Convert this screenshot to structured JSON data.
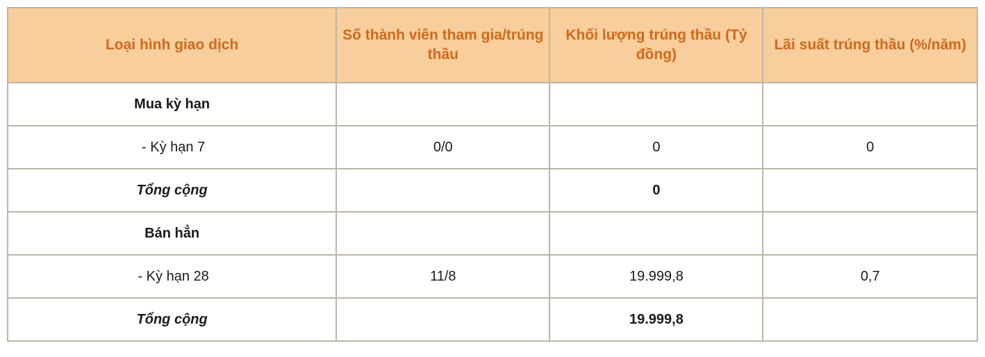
{
  "table": {
    "colors": {
      "header_bg": "#f7ce9c",
      "header_fg": "#d1691a",
      "border": "#bdb4a8",
      "text": "#1a1a1a",
      "bg": "#ffffff"
    },
    "column_widths_pct": [
      33.9,
      22.0,
      22.0,
      22.1
    ],
    "columns": [
      "Loại hình giao dịch",
      "Số thành viên tham gia/trúng thầu",
      "Khối lượng trúng thầu (Tỷ đồng)",
      "Lãi suất trúng thầu (%/năm)"
    ],
    "rows": [
      {
        "kind": "section",
        "label": "Mua kỳ hạn"
      },
      {
        "kind": "data",
        "label": " - Kỳ hạn 7",
        "members": "0/0",
        "volume": "0",
        "rate": "0"
      },
      {
        "kind": "total",
        "label": "Tổng cộng",
        "members": "",
        "volume": "0",
        "rate": ""
      },
      {
        "kind": "section",
        "label": "Bán hẳn"
      },
      {
        "kind": "data",
        "label": " - Kỳ hạn 28",
        "members": "11/8",
        "volume": "19.999,8",
        "rate": "0,7"
      },
      {
        "kind": "total",
        "label": "Tổng cộng",
        "members": "",
        "volume": "19.999,8",
        "rate": ""
      }
    ]
  }
}
